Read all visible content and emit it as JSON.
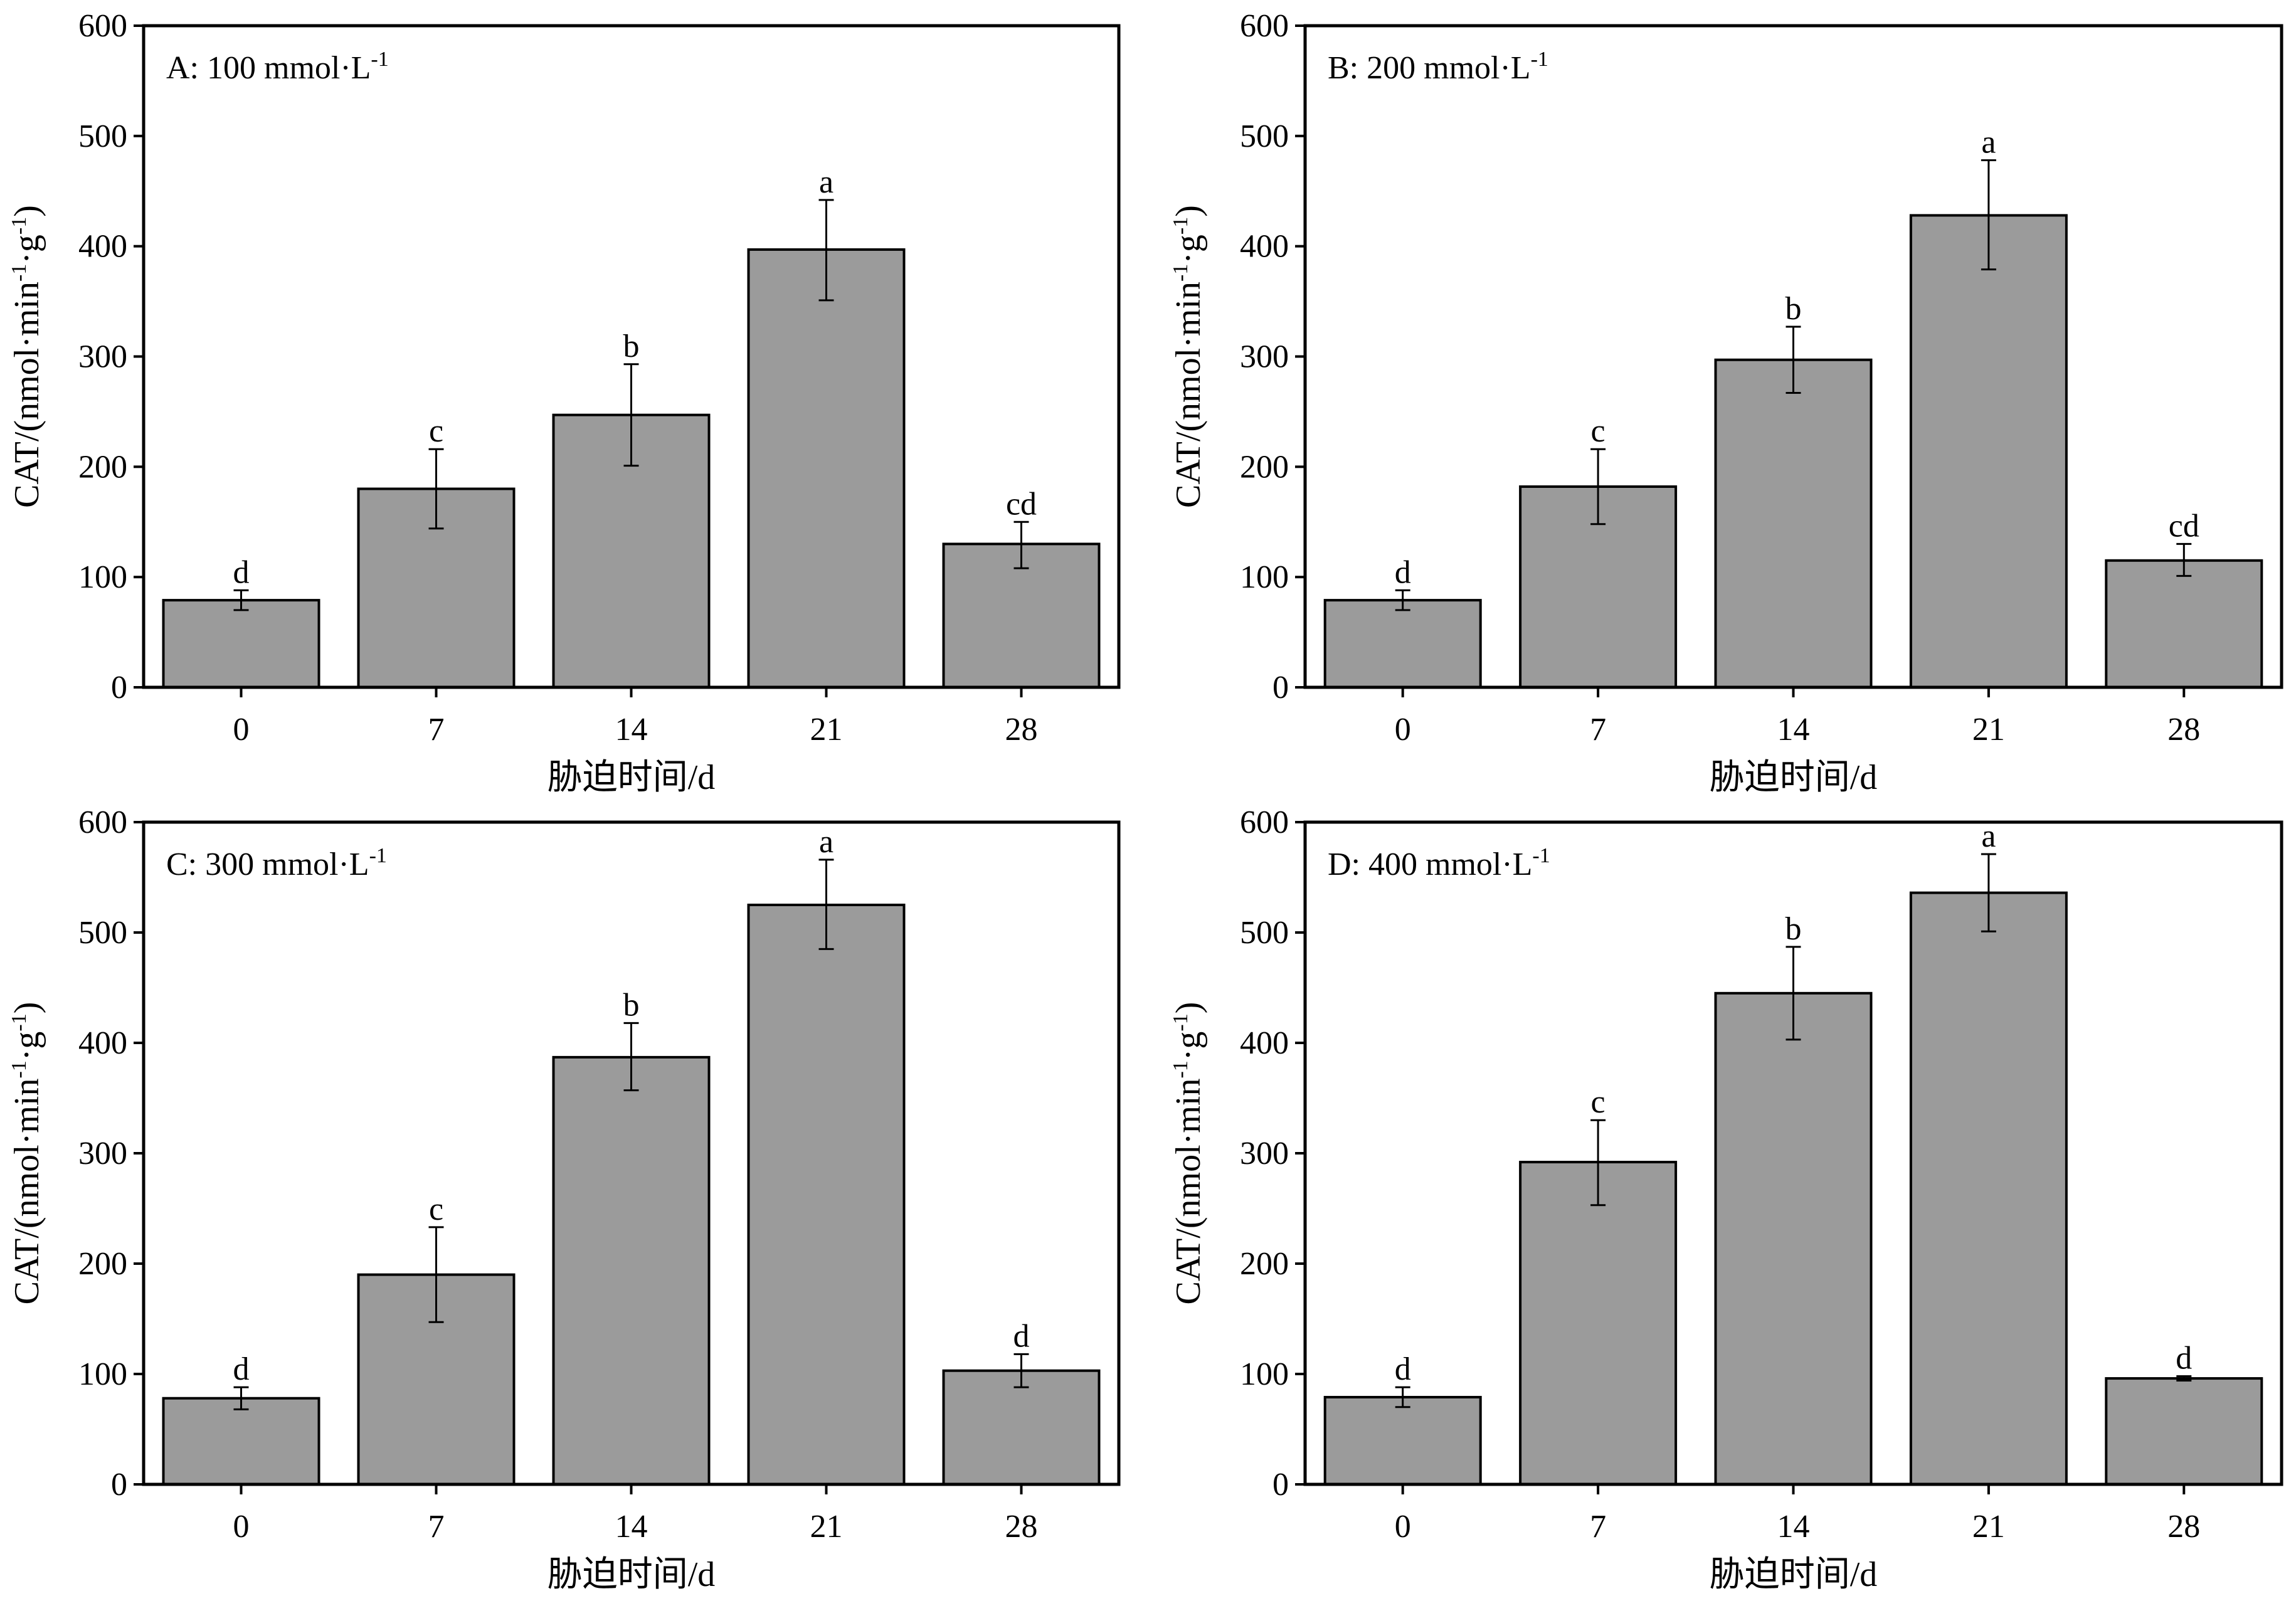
{
  "figure": {
    "bar_color": "#9b9b9b",
    "frame_color": "#000000"
  },
  "chart_data": [
    {
      "type": "bar",
      "title": "A: 100 mmol·L-1",
      "title_main": "A: 100 mmol·L",
      "title_sup": "-1",
      "xlabel": "胁迫时间/d",
      "ylabel_main": "CAT/(nmol·min",
      "ylabel_sup1": "-1",
      "ylabel_mid": "·g",
      "ylabel_sup2": "-1",
      "ylabel_end": ")",
      "ylim": [
        0,
        600
      ],
      "yticks": [
        0,
        100,
        200,
        300,
        400,
        500,
        600
      ],
      "categories": [
        "0",
        "7",
        "14",
        "21",
        "28"
      ],
      "values": [
        79,
        180,
        247,
        397,
        130
      ],
      "error_low": [
        70,
        144,
        201,
        351,
        108
      ],
      "error_high": [
        88,
        216,
        293,
        442,
        150
      ],
      "labels": [
        "d",
        "c",
        "b",
        "a",
        "cd"
      ]
    },
    {
      "type": "bar",
      "title": "B: 200 mmol·L-1",
      "title_main": "B: 200 mmol·L",
      "title_sup": "-1",
      "xlabel": "胁迫时间/d",
      "ylabel_main": "CAT/(nmol·min",
      "ylabel_sup1": "-1",
      "ylabel_mid": "·g",
      "ylabel_sup2": "-1",
      "ylabel_end": ")",
      "ylim": [
        0,
        600
      ],
      "yticks": [
        0,
        100,
        200,
        300,
        400,
        500,
        600
      ],
      "categories": [
        "0",
        "7",
        "14",
        "21",
        "28"
      ],
      "values": [
        79,
        182,
        297,
        428,
        115
      ],
      "error_low": [
        70,
        148,
        267,
        379,
        101
      ],
      "error_high": [
        88,
        216,
        327,
        478,
        130
      ],
      "labels": [
        "d",
        "c",
        "b",
        "a",
        "cd"
      ]
    },
    {
      "type": "bar",
      "title": "C: 300 mmol·L-1",
      "title_main": "C: 300 mmol·L",
      "title_sup": "-1",
      "xlabel": "胁迫时间/d",
      "ylabel_main": "CAT/(nmol·min",
      "ylabel_sup1": "-1",
      "ylabel_mid": "·g",
      "ylabel_sup2": "-1",
      "ylabel_end": ")",
      "ylim": [
        0,
        600
      ],
      "yticks": [
        0,
        100,
        200,
        300,
        400,
        500,
        600
      ],
      "categories": [
        "0",
        "7",
        "14",
        "21",
        "28"
      ],
      "values": [
        78,
        190,
        387,
        525,
        103
      ],
      "error_low": [
        68,
        147,
        357,
        485,
        88
      ],
      "error_high": [
        88,
        233,
        418,
        566,
        118
      ],
      "labels": [
        "d",
        "c",
        "b",
        "a",
        "d"
      ]
    },
    {
      "type": "bar",
      "title": "D: 400 mmol·L-1",
      "title_main": "D: 400 mmol·L",
      "title_sup": "-1",
      "xlabel": "胁迫时间/d",
      "ylabel_main": "CAT/(nmol·min",
      "ylabel_sup1": "-1",
      "ylabel_mid": "·g",
      "ylabel_sup2": "-1",
      "ylabel_end": ")",
      "ylim": [
        0,
        600
      ],
      "yticks": [
        0,
        100,
        200,
        300,
        400,
        500,
        600
      ],
      "categories": [
        "0",
        "7",
        "14",
        "21",
        "28"
      ],
      "values": [
        79,
        292,
        445,
        536,
        96
      ],
      "error_low": [
        70,
        253,
        403,
        501,
        94
      ],
      "error_high": [
        88,
        330,
        487,
        571,
        98
      ],
      "labels": [
        "d",
        "c",
        "b",
        "a",
        "d"
      ]
    }
  ]
}
